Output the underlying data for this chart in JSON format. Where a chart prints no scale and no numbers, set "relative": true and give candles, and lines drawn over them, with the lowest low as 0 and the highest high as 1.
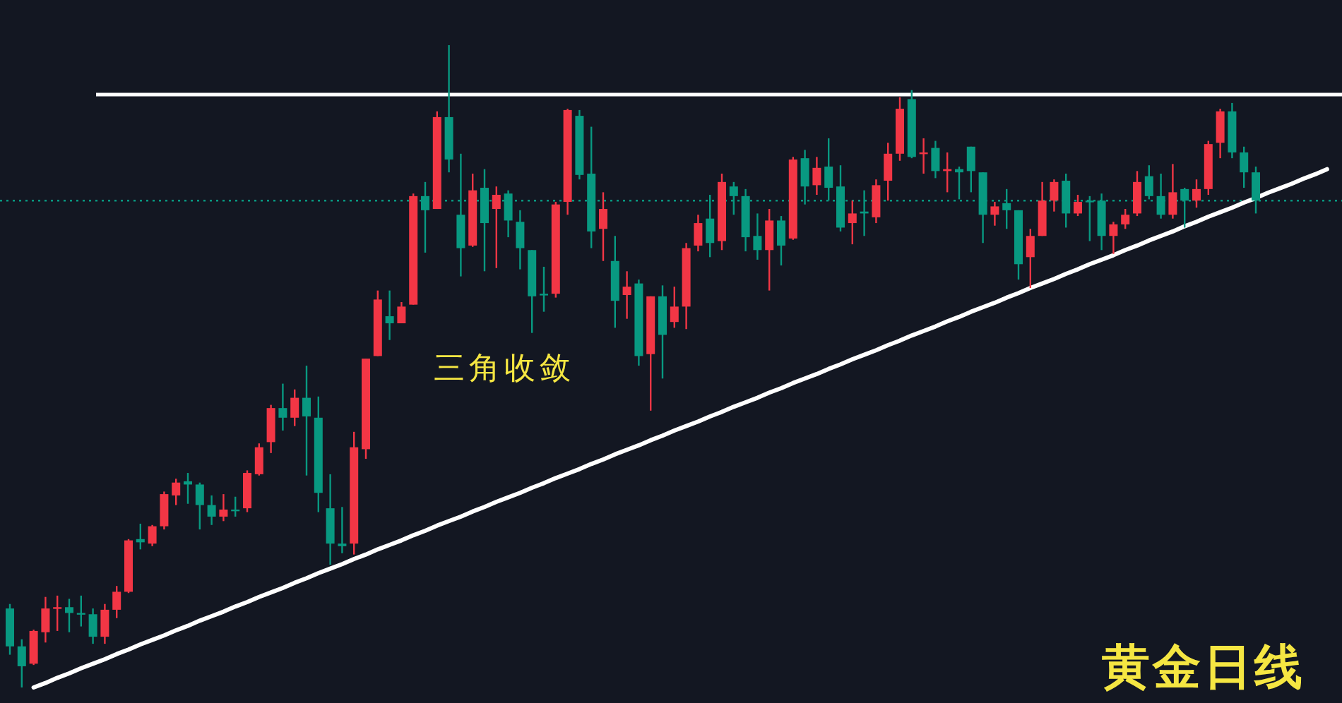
{
  "chart_data": {
    "type": "candlestick",
    "title": "黄金日线",
    "annotations": [
      "三角收敛"
    ],
    "relative": true,
    "categories": [
      null,
      null,
      null,
      null,
      null,
      null,
      null,
      null,
      null,
      null,
      null,
      null,
      null,
      null,
      null,
      null,
      null,
      null,
      null,
      null,
      null,
      null,
      null,
      null,
      null,
      null,
      null,
      null,
      null,
      null,
      null,
      null,
      null,
      null,
      null,
      null,
      null,
      null,
      null,
      null,
      null,
      null,
      null,
      null,
      null,
      null,
      null,
      null,
      null,
      null,
      null,
      null,
      null,
      null,
      null,
      null,
      null,
      null,
      null,
      null,
      null,
      null,
      null,
      null,
      null,
      null,
      null,
      null,
      null,
      null,
      null,
      null,
      null,
      null,
      null,
      null,
      null,
      null,
      null,
      null,
      null,
      null,
      null,
      null,
      null,
      null,
      null,
      null,
      null,
      null,
      null,
      null,
      null,
      null,
      null,
      null,
      null,
      null,
      null,
      null,
      null,
      null,
      null,
      null,
      null,
      null,
      null,
      null,
      null,
      null,
      null,
      null
    ],
    "ohlc": [
      [
        0.123,
        0.13,
        0.051,
        0.064
      ],
      [
        0.064,
        0.075,
        0,
        0.033
      ],
      [
        0.037,
        0.09,
        0.035,
        0.088
      ],
      [
        0.086,
        0.141,
        0.07,
        0.123
      ],
      [
        0.123,
        0.143,
        0.088,
        0.125
      ],
      [
        0.125,
        0.138,
        0.086,
        0.116
      ],
      [
        0.116,
        0.143,
        0.095,
        0.114
      ],
      [
        0.114,
        0.123,
        0.068,
        0.079
      ],
      [
        0.079,
        0.13,
        0.068,
        0.121
      ],
      [
        0.121,
        0.158,
        0.108,
        0.149
      ],
      [
        0.149,
        0.231,
        0.147,
        0.229
      ],
      [
        0.231,
        0.255,
        0.215,
        0.226
      ],
      [
        0.224,
        0.253,
        0.22,
        0.251
      ],
      [
        0.251,
        0.305,
        0.246,
        0.301
      ],
      [
        0.299,
        0.325,
        0.284,
        0.319
      ],
      [
        0.321,
        0.334,
        0.286,
        0.316
      ],
      [
        0.316,
        0.319,
        0.246,
        0.284
      ],
      [
        0.284,
        0.299,
        0.253,
        0.266
      ],
      [
        0.266,
        0.301,
        0.259,
        0.277
      ],
      [
        0.277,
        0.297,
        0.266,
        0.275
      ],
      [
        0.279,
        0.338,
        0.273,
        0.334
      ],
      [
        0.332,
        0.38,
        0.33,
        0.374
      ],
      [
        0.382,
        0.44,
        0.365,
        0.435
      ],
      [
        0.435,
        0.473,
        0.4,
        0.42
      ],
      [
        0.42,
        0.464,
        0.407,
        0.451
      ],
      [
        0.451,
        0.501,
        0.33,
        0.422
      ],
      [
        0.42,
        0.453,
        0.273,
        0.303
      ],
      [
        0.279,
        0.332,
        0.191,
        0.224
      ],
      [
        0.224,
        0.281,
        0.209,
        0.22
      ],
      [
        0.224,
        0.398,
        0.207,
        0.374
      ],
      [
        0.371,
        0.512,
        0.356,
        0.512
      ],
      [
        0.516,
        0.618,
        0.516,
        0.604
      ],
      [
        0.578,
        0.618,
        0.541,
        0.567
      ],
      [
        0.567,
        0.6,
        0.567,
        0.593
      ],
      [
        0.596,
        0.769,
        0.596,
        0.765
      ],
      [
        0.765,
        0.787,
        0.677,
        0.743
      ],
      [
        0.745,
        0.897,
        0.745,
        0.888
      ],
      [
        0.888,
        1,
        0.802,
        0.822
      ],
      [
        0.736,
        0.831,
        0.64,
        0.684
      ],
      [
        0.688,
        0.8,
        0.686,
        0.774
      ],
      [
        0.778,
        0.807,
        0.648,
        0.723
      ],
      [
        0.745,
        0.78,
        0.653,
        0.767
      ],
      [
        0.769,
        0.774,
        0.701,
        0.727
      ],
      [
        0.725,
        0.743,
        0.651,
        0.684
      ],
      [
        0.681,
        0.681,
        0.552,
        0.609
      ],
      [
        0.613,
        0.655,
        0.585,
        0.611
      ],
      [
        0.613,
        0.756,
        0.607,
        0.752
      ],
      [
        0.756,
        0.901,
        0.736,
        0.899
      ],
      [
        0.89,
        0.899,
        0.791,
        0.798
      ],
      [
        0.8,
        0.873,
        0.684,
        0.71
      ],
      [
        0.714,
        0.771,
        0.664,
        0.745
      ],
      [
        0.664,
        0.703,
        0.56,
        0.602
      ],
      [
        0.611,
        0.648,
        0.574,
        0.624
      ],
      [
        0.629,
        0.635,
        0.501,
        0.516
      ],
      [
        0.519,
        0.609,
        0.431,
        0.609
      ],
      [
        0.609,
        0.626,
        0.481,
        0.549
      ],
      [
        0.569,
        0.624,
        0.56,
        0.593
      ],
      [
        0.593,
        0.692,
        0.558,
        0.684
      ],
      [
        0.688,
        0.736,
        0.679,
        0.723
      ],
      [
        0.73,
        0.767,
        0.67,
        0.692
      ],
      [
        0.695,
        0.8,
        0.681,
        0.787
      ],
      [
        0.78,
        0.787,
        0.736,
        0.765
      ],
      [
        0.765,
        0.776,
        0.679,
        0.701
      ],
      [
        0.703,
        0.738,
        0.666,
        0.681
      ],
      [
        0.681,
        0.745,
        0.618,
        0.727
      ],
      [
        0.727,
        0.734,
        0.657,
        0.688
      ],
      [
        0.699,
        0.826,
        0.697,
        0.822
      ],
      [
        0.824,
        0.837,
        0.752,
        0.78
      ],
      [
        0.782,
        0.826,
        0.767,
        0.809
      ],
      [
        0.811,
        0.855,
        0.758,
        0.778
      ],
      [
        0.78,
        0.813,
        0.71,
        0.716
      ],
      [
        0.723,
        0.758,
        0.69,
        0.738
      ],
      [
        0.741,
        0.774,
        0.703,
        0.738
      ],
      [
        0.732,
        0.791,
        0.723,
        0.782
      ],
      [
        0.789,
        0.848,
        0.758,
        0.831
      ],
      [
        0.831,
        0.919,
        0.82,
        0.901
      ],
      [
        0.916,
        0.93,
        0.824,
        0.826
      ],
      [
        0.831,
        0.855,
        0.8,
        0.833
      ],
      [
        0.84,
        0.851,
        0.793,
        0.804
      ],
      [
        0.804,
        0.833,
        0.771,
        0.807
      ],
      [
        0.807,
        0.811,
        0.76,
        0.802
      ],
      [
        0.842,
        0.842,
        0.771,
        0.804
      ],
      [
        0.802,
        0.802,
        0.692,
        0.736
      ],
      [
        0.736,
        0.756,
        0.719,
        0.749
      ],
      [
        0.754,
        0.776,
        0.714,
        0.743
      ],
      [
        0.743,
        0.743,
        0.635,
        0.659
      ],
      [
        0.67,
        0.714,
        0.622,
        0.703
      ],
      [
        0.703,
        0.787,
        0.703,
        0.758
      ],
      [
        0.758,
        0.791,
        0.741,
        0.787
      ],
      [
        0.789,
        0.8,
        0.716,
        0.738
      ],
      [
        0.738,
        0.767,
        0.734,
        0.756
      ],
      [
        0.758,
        0.765,
        0.695,
        0.756
      ],
      [
        0.758,
        0.769,
        0.681,
        0.703
      ],
      [
        0.703,
        0.725,
        0.675,
        0.721
      ],
      [
        0.721,
        0.745,
        0.714,
        0.736
      ],
      [
        0.738,
        0.804,
        0.734,
        0.787
      ],
      [
        0.796,
        0.813,
        0.76,
        0.765
      ],
      [
        0.765,
        0.8,
        0.73,
        0.736
      ],
      [
        0.736,
        0.815,
        0.73,
        0.771
      ],
      [
        0.776,
        0.778,
        0.716,
        0.758
      ],
      [
        0.758,
        0.791,
        0.747,
        0.776
      ],
      [
        0.776,
        0.851,
        0.767,
        0.846
      ],
      [
        0.848,
        0.901,
        0.824,
        0.897
      ],
      [
        0.897,
        0.91,
        0.824,
        0.833
      ],
      [
        0.833,
        0.842,
        0.778,
        0.802
      ],
      [
        0.802,
        0.811,
        0.738,
        0.758
      ],
      null,
      null,
      null,
      null,
      null,
      null
    ],
    "colors": [
      "#089981",
      "#089981",
      "#f23645",
      "#f23645",
      "#f23645",
      "#089981",
      "#089981",
      "#089981",
      "#f23645",
      "#f23645",
      "#f23645",
      "#089981",
      "#f23645",
      "#f23645",
      "#f23645",
      "#089981",
      "#089981",
      "#089981",
      "#f23645",
      "#089981",
      "#f23645",
      "#f23645",
      "#f23645",
      "#089981",
      "#f23645",
      "#089981",
      "#089981",
      "#089981",
      "#089981",
      "#f23645",
      "#f23645",
      "#f23645",
      "#089981",
      "#f23645",
      "#f23645",
      "#089981",
      "#f23645",
      "#089981",
      "#089981",
      "#f23645",
      "#089981",
      "#f23645",
      "#089981",
      "#089981",
      "#089981",
      "#089981",
      "#f23645",
      "#f23645",
      "#089981",
      "#089981",
      "#f23645",
      "#089981",
      "#f23645",
      "#089981",
      "#f23645",
      "#089981",
      "#f23645",
      "#f23645",
      "#f23645",
      "#089981",
      "#f23645",
      "#089981",
      "#089981",
      "#089981",
      "#f23645",
      "#089981",
      "#f23645",
      "#089981",
      "#f23645",
      "#089981",
      "#089981",
      "#f23645",
      "#089981",
      "#f23645",
      "#f23645",
      "#f23645",
      "#089981",
      "#f23645",
      "#089981",
      "#f23645",
      "#089981",
      "#089981",
      "#089981",
      "#f23645",
      "#089981",
      "#089981",
      "#f23645",
      "#f23645",
      "#f23645",
      "#089981",
      "#f23645",
      "#089981",
      "#089981",
      "#f23645",
      "#f23645",
      "#f23645",
      "#089981",
      "#089981",
      "#f23645",
      "#089981",
      "#f23645",
      "#f23645",
      "#f23645",
      "#089981",
      "#089981",
      "#089981",
      null,
      null,
      null,
      null,
      null,
      null
    ],
    "ref_lines": [
      {
        "axis": "y",
        "value": 0.923,
        "color": "#ffffff",
        "line_style": "solid"
      },
      {
        "axis": "y",
        "value": 0.758,
        "color": "#089981",
        "line_style": "dotted"
      }
    ],
    "series": [
      {
        "type": "line",
        "color": "#ffffff",
        "values": [
          null,
          null,
          0,
          0.007,
          0.015,
          0.022,
          0.03,
          0.037,
          0.044,
          0.052,
          0.059,
          0.067,
          0.074,
          0.081,
          0.089,
          0.096,
          0.104,
          0.111,
          0.118,
          0.126,
          0.133,
          0.141,
          0.148,
          0.155,
          0.163,
          0.17,
          0.178,
          0.185,
          0.192,
          0.2,
          0.207,
          0.215,
          0.222,
          0.229,
          0.237,
          0.244,
          0.252,
          0.259,
          0.266,
          0.274,
          0.281,
          0.289,
          0.296,
          0.303,
          0.311,
          0.318,
          0.326,
          0.333,
          0.34,
          0.348,
          0.355,
          0.363,
          0.37,
          0.377,
          0.385,
          0.392,
          0.4,
          0.407,
          0.414,
          0.422,
          0.429,
          0.437,
          0.444,
          0.451,
          0.459,
          0.466,
          0.474,
          0.481,
          0.488,
          0.496,
          0.503,
          0.511,
          0.518,
          0.525,
          0.533,
          0.54,
          0.548,
          0.555,
          0.562,
          0.57,
          0.577,
          0.585,
          0.592,
          0.599,
          0.607,
          0.614,
          0.622,
          0.629,
          0.636,
          0.644,
          0.651,
          0.659,
          0.666,
          0.673,
          0.681,
          0.688,
          0.696,
          0.703,
          0.71,
          0.718,
          0.725,
          0.733,
          0.74,
          0.747,
          0.755,
          0.762,
          0.77,
          0.777,
          0.784,
          0.792,
          0.799,
          0.807
        ]
      }
    ]
  }
}
